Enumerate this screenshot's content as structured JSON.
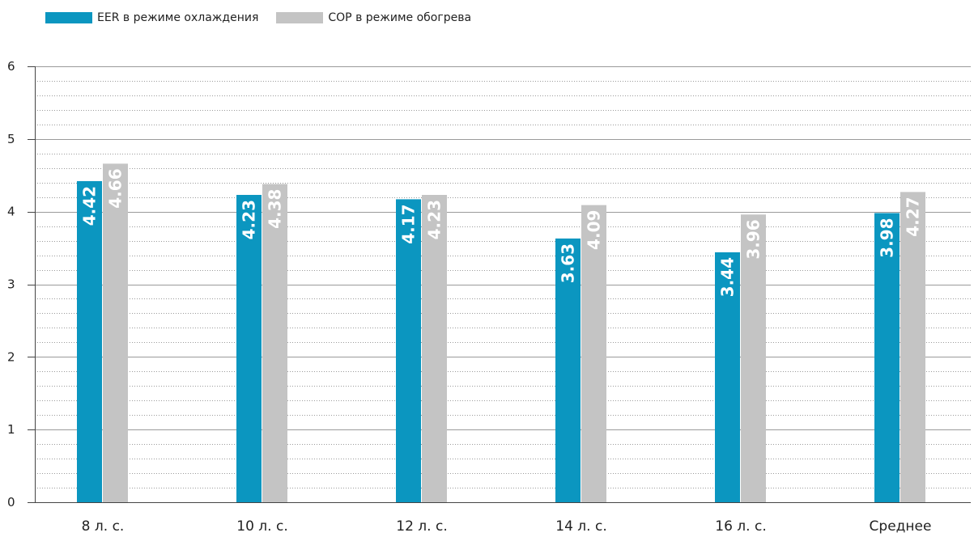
{
  "chart_data": {
    "type": "bar",
    "categories": [
      "8 л. с.",
      "10 л. с.",
      "12 л. с.",
      "14 л. с.",
      "16 л. с.",
      "Среднее"
    ],
    "series": [
      {
        "name": "EER в режиме охлаждения",
        "values": [
          4.42,
          4.23,
          4.17,
          3.63,
          3.44,
          3.98
        ],
        "color": "#0b96c0"
      },
      {
        "name": "COP в режиме обогрева",
        "values": [
          4.66,
          4.38,
          4.23,
          4.09,
          3.96,
          4.27
        ],
        "color": "#c4c4c4"
      }
    ],
    "data_labels": [
      [
        "4.42",
        "4.23",
        "4.17",
        "3.63",
        "3.44",
        "3.98"
      ],
      [
        "4.66",
        "4.38",
        "4.23",
        "4.09",
        "3.96",
        "4.27"
      ]
    ],
    "y_ticks": [
      "0",
      "1",
      "2",
      "3",
      "4",
      "5",
      "6"
    ],
    "ylim": [
      0,
      6
    ],
    "minor_grid_step": 0.2,
    "grid": true,
    "legend_position": "top-left",
    "title": "",
    "xlabel": "",
    "ylabel": ""
  }
}
